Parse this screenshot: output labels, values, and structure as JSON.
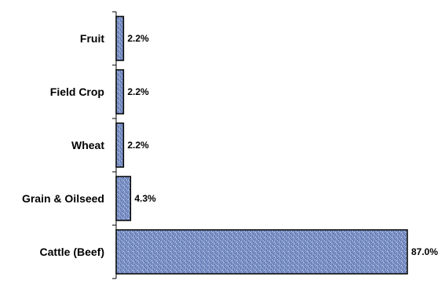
{
  "chart_data": {
    "type": "bar",
    "orientation": "horizontal",
    "categories": [
      "Fruit",
      "Field Crop",
      "Wheat",
      "Grain & Oilseed",
      "Cattle (Beef)"
    ],
    "values": [
      2.2,
      2.2,
      2.2,
      4.3,
      87.0
    ],
    "value_labels": [
      "2.2%",
      "2.2%",
      "2.2%",
      "4.3%",
      "87.0%"
    ],
    "title": "",
    "xlabel": "",
    "ylabel": "",
    "xlim": [
      0,
      100
    ],
    "grid": false,
    "legend": "none",
    "colors": {
      "bar_fill": "#7f95c8",
      "bar_texture_dark": "#4a5f9c",
      "bar_texture_light": "#c9d4ee",
      "bar_stroke": "#000000",
      "axis": "#000000"
    }
  }
}
